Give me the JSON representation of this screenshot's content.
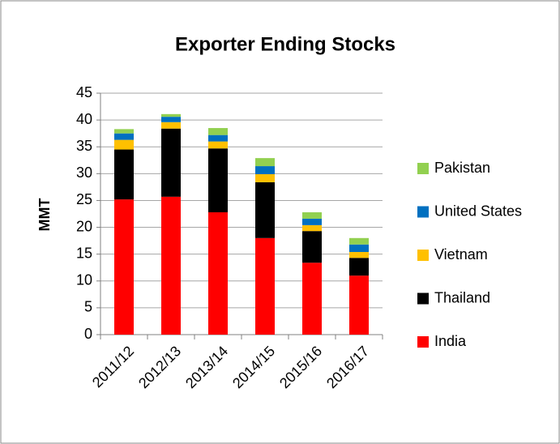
{
  "chart_data": {
    "type": "bar",
    "stacked": true,
    "title": "Exporter Ending Stocks",
    "y_label": "MMT",
    "categories": [
      "2011/12",
      "2012/13",
      "2013/14",
      "2014/15",
      "2015/16",
      "2016/17"
    ],
    "series": [
      {
        "name": "India",
        "color": "#ff0000",
        "values": [
          25.2,
          25.7,
          22.8,
          18.0,
          13.4,
          11.0
        ]
      },
      {
        "name": "Thailand",
        "color": "#000000",
        "values": [
          9.3,
          12.7,
          11.9,
          10.4,
          5.9,
          3.3
        ]
      },
      {
        "name": "Vietnam",
        "color": "#ffc000",
        "values": [
          1.8,
          1.2,
          1.3,
          1.5,
          1.1,
          1.1
        ]
      },
      {
        "name": "United States",
        "color": "#0070c0",
        "values": [
          1.2,
          1.0,
          1.2,
          1.5,
          1.2,
          1.4
        ]
      },
      {
        "name": "Pakistan",
        "color": "#92d050",
        "values": [
          0.8,
          0.5,
          1.3,
          1.5,
          1.2,
          1.2
        ]
      }
    ],
    "ylim": [
      0,
      45
    ],
    "yticks": [
      0,
      5,
      10,
      15,
      20,
      25,
      30,
      35,
      40,
      45
    ],
    "grid": true,
    "legend": "right"
  }
}
